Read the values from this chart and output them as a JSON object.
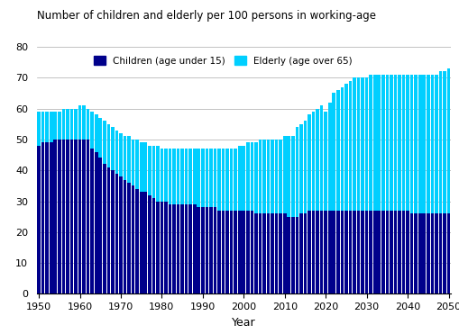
{
  "title": "Number of children and elderly per 100 persons in working-age",
  "xlabel": "Year",
  "years": [
    1950,
    1951,
    1952,
    1953,
    1954,
    1955,
    1956,
    1957,
    1958,
    1959,
    1960,
    1961,
    1962,
    1963,
    1964,
    1965,
    1966,
    1967,
    1968,
    1969,
    1970,
    1971,
    1972,
    1973,
    1974,
    1975,
    1976,
    1977,
    1978,
    1979,
    1980,
    1981,
    1982,
    1983,
    1984,
    1985,
    1986,
    1987,
    1988,
    1989,
    1990,
    1991,
    1992,
    1993,
    1994,
    1995,
    1996,
    1997,
    1998,
    1999,
    2000,
    2001,
    2002,
    2003,
    2004,
    2005,
    2006,
    2007,
    2008,
    2009,
    2010,
    2011,
    2012,
    2013,
    2014,
    2015,
    2016,
    2017,
    2018,
    2019,
    2020,
    2021,
    2022,
    2023,
    2024,
    2025,
    2026,
    2027,
    2028,
    2029,
    2030,
    2031,
    2032,
    2033,
    2034,
    2035,
    2036,
    2037,
    2038,
    2039,
    2040,
    2041,
    2042,
    2043,
    2044,
    2045,
    2046,
    2047,
    2048,
    2049,
    2050
  ],
  "children": [
    48,
    49,
    49,
    49,
    50,
    50,
    50,
    50,
    50,
    50,
    50,
    50,
    50,
    47,
    46,
    44,
    42,
    41,
    40,
    39,
    38,
    37,
    36,
    35,
    34,
    33,
    33,
    32,
    31,
    30,
    30,
    30,
    29,
    29,
    29,
    29,
    29,
    29,
    29,
    28,
    28,
    28,
    28,
    28,
    27,
    27,
    27,
    27,
    27,
    27,
    27,
    27,
    27,
    26,
    26,
    26,
    26,
    26,
    26,
    26,
    26,
    25,
    25,
    25,
    26,
    26,
    27,
    27,
    27,
    27,
    27,
    27,
    27,
    27,
    27,
    27,
    27,
    27,
    27,
    27,
    27,
    27,
    27,
    27,
    27,
    27,
    27,
    27,
    27,
    27,
    27,
    26,
    26,
    26,
    26,
    26,
    26,
    26,
    26,
    26,
    26
  ],
  "elderly": [
    59,
    59,
    59,
    59,
    59,
    59,
    60,
    60,
    60,
    60,
    61,
    61,
    60,
    59,
    58,
    57,
    56,
    55,
    54,
    53,
    52,
    51,
    51,
    50,
    50,
    49,
    49,
    48,
    48,
    48,
    47,
    47,
    47,
    47,
    47,
    47,
    47,
    47,
    47,
    47,
    47,
    47,
    47,
    47,
    47,
    47,
    47,
    47,
    47,
    48,
    48,
    49,
    49,
    49,
    50,
    50,
    50,
    50,
    50,
    50,
    51,
    51,
    51,
    54,
    55,
    56,
    58,
    59,
    60,
    61,
    59,
    62,
    65,
    66,
    67,
    68,
    69,
    70,
    70,
    70,
    70,
    71,
    71,
    71,
    71,
    71,
    71,
    71,
    71,
    71,
    71,
    71,
    71,
    71,
    71,
    71,
    71,
    71,
    72,
    72,
    73
  ],
  "children_color": "#00008B",
  "elderly_color": "#00CFFF",
  "background_color": "#ffffff",
  "ylim": [
    0,
    80
  ],
  "yticks": [
    0,
    10,
    20,
    30,
    40,
    50,
    60,
    70,
    80
  ],
  "xticks": [
    1950,
    1960,
    1970,
    1980,
    1990,
    2000,
    2010,
    2020,
    2030,
    2040,
    2050
  ],
  "grid_color": "#aaaaaa",
  "legend_children": "Children (age under 15)",
  "legend_elderly": "Elderly (age over 65)"
}
